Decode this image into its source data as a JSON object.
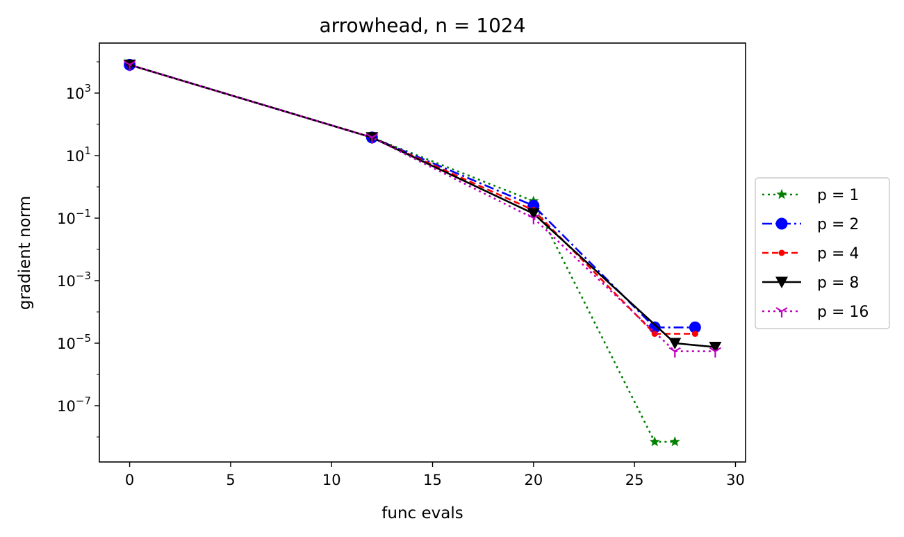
{
  "chart_data": {
    "type": "line",
    "title": "arrowhead, n = 1024",
    "xlabel": "func evals",
    "ylabel": "gradient norm",
    "xlim": [
      -1.5,
      30.5
    ],
    "ylim_log10": [
      -8.8,
      4.6
    ],
    "yscale": "log",
    "grid": false,
    "legend_placement": "right, outside",
    "xticks": [
      0,
      5,
      10,
      15,
      20,
      25,
      30
    ],
    "xtick_labels": [
      "0",
      "5",
      "10",
      "15",
      "20",
      "25",
      "30"
    ],
    "yticks_log10": [
      3,
      1,
      -1,
      -3,
      -5,
      -7
    ],
    "ytick_labels": [
      {
        "base": "10",
        "exp": "3"
      },
      {
        "base": "10",
        "exp": "1"
      },
      {
        "base": "10",
        "exp": "−1"
      },
      {
        "base": "10",
        "exp": "−3"
      },
      {
        "base": "10",
        "exp": "−5"
      },
      {
        "base": "10",
        "exp": "−7"
      }
    ],
    "series": [
      {
        "name": "p = 1",
        "color": "#008000",
        "dash": "3,5",
        "marker": "star",
        "x": [
          0,
          12,
          20,
          26,
          27
        ],
        "y": [
          8000,
          38,
          0.35,
          7e-09,
          7e-09
        ]
      },
      {
        "name": "p = 2",
        "color": "#0000ff",
        "dash": "14,5,3,5",
        "marker": "circle",
        "x": [
          0,
          12,
          20,
          26,
          28
        ],
        "y": [
          8000,
          38,
          0.25,
          3.2e-05,
          3.2e-05
        ]
      },
      {
        "name": "p = 4",
        "color": "#ff0000",
        "dash": "9,5",
        "marker": "point",
        "x": [
          0,
          12,
          20,
          26,
          28
        ],
        "y": [
          8000,
          38,
          0.18,
          2e-05,
          2e-05
        ]
      },
      {
        "name": "p = 8",
        "color": "#000000",
        "dash": "",
        "marker": "triangle_down",
        "x": [
          0,
          12,
          20,
          27,
          29
        ],
        "y": [
          8000,
          38,
          0.14,
          1e-05,
          7.5e-06
        ]
      },
      {
        "name": "p = 16",
        "color": "#bf00bf",
        "dash": "3,5",
        "marker": "tri_down",
        "x": [
          0,
          12,
          20,
          27,
          29
        ],
        "y": [
          8000,
          38,
          0.1,
          5.5e-06,
          5.5e-06
        ]
      }
    ]
  }
}
